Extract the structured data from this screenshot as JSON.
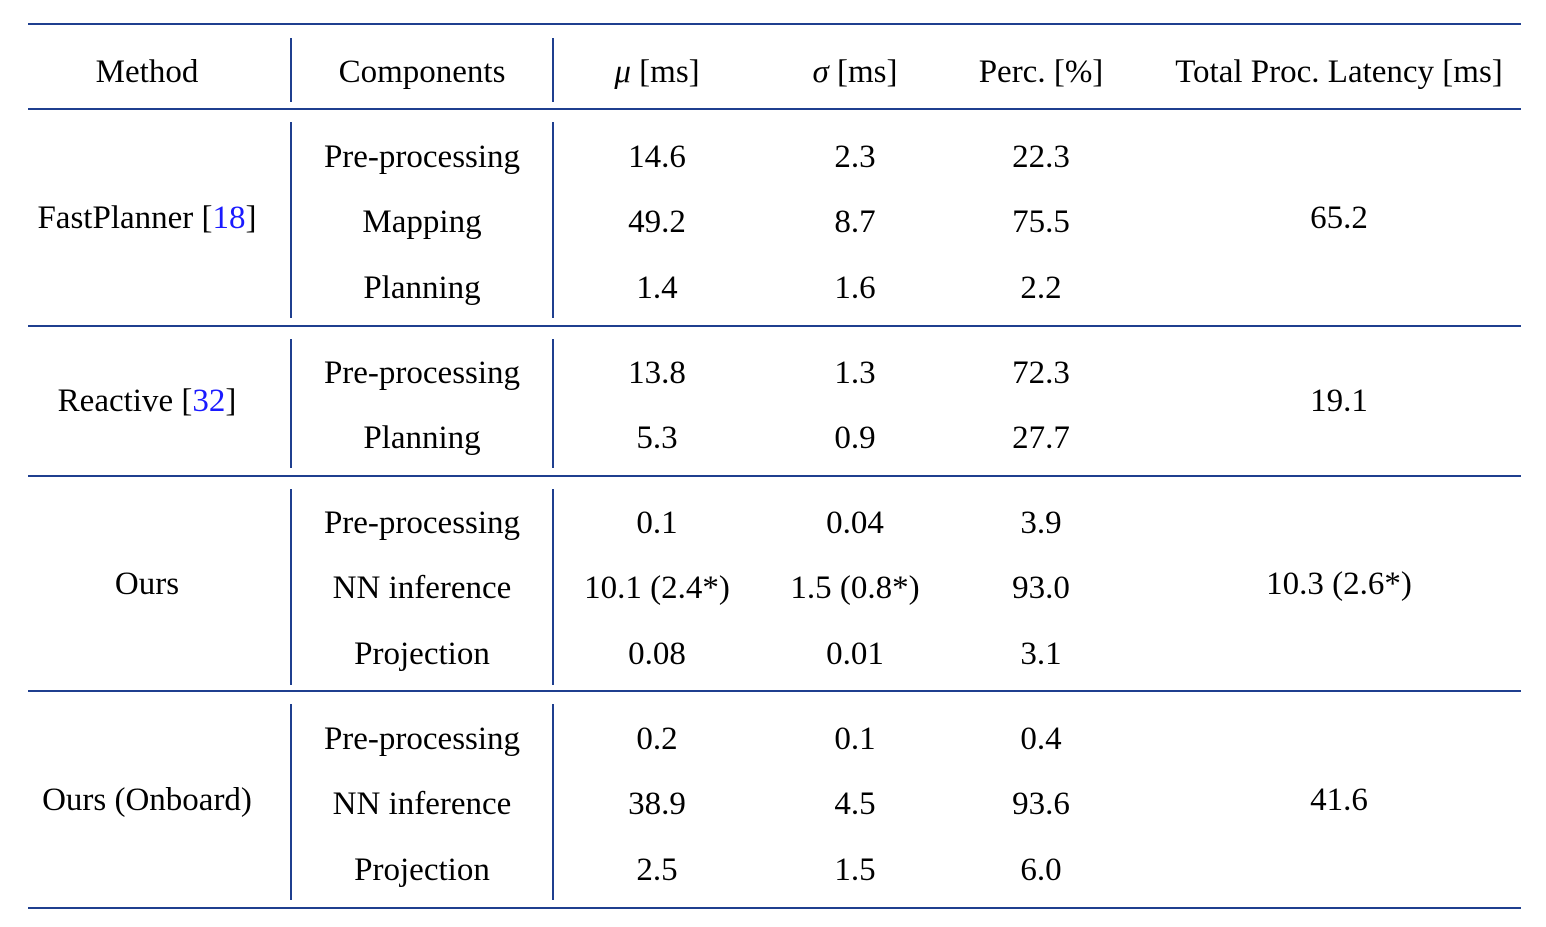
{
  "header": {
    "method": "Method",
    "components": "Components",
    "mu_symbol": "μ",
    "mu_unit": " [ms]",
    "sigma_symbol": "σ",
    "sigma_unit": " [ms]",
    "perc": "Perc. [%]",
    "total": "Total Proc. Latency [ms]"
  },
  "groups": [
    {
      "method": "FastPlanner ",
      "cite": "18",
      "total": "65.2",
      "rows": [
        {
          "component": "Pre-processing",
          "mu": "14.6",
          "sigma": "2.3",
          "perc": "22.3"
        },
        {
          "component": "Mapping",
          "mu": "49.2",
          "sigma": "8.7",
          "perc": "75.5"
        },
        {
          "component": "Planning",
          "mu": "1.4",
          "sigma": "1.6",
          "perc": "2.2"
        }
      ]
    },
    {
      "method": "Reactive ",
      "cite": "32",
      "total": "19.1",
      "rows": [
        {
          "component": "Pre-processing",
          "mu": "13.8",
          "sigma": "1.3",
          "perc": "72.3"
        },
        {
          "component": "Planning",
          "mu": "5.3",
          "sigma": "0.9",
          "perc": "27.7"
        }
      ]
    },
    {
      "method": "Ours",
      "cite": "",
      "total": "10.3 (2.6*)",
      "rows": [
        {
          "component": "Pre-processing",
          "mu": "0.1",
          "sigma": "0.04",
          "perc": "3.9"
        },
        {
          "component": "NN inference",
          "mu": "10.1 (2.4*)",
          "sigma": "1.5 (0.8*)",
          "perc": "93.0"
        },
        {
          "component": "Projection",
          "mu": "0.08",
          "sigma": "0.01",
          "perc": "3.1"
        }
      ]
    },
    {
      "method": "Ours (Onboard)",
      "cite": "",
      "total": "41.6",
      "rows": [
        {
          "component": "Pre-processing",
          "mu": "0.2",
          "sigma": "0.1",
          "perc": "0.4"
        },
        {
          "component": "NN inference",
          "mu": "38.9",
          "sigma": "4.5",
          "perc": "93.6"
        },
        {
          "component": "Projection",
          "mu": "2.5",
          "sigma": "1.5",
          "perc": "6.0"
        }
      ]
    }
  ]
}
